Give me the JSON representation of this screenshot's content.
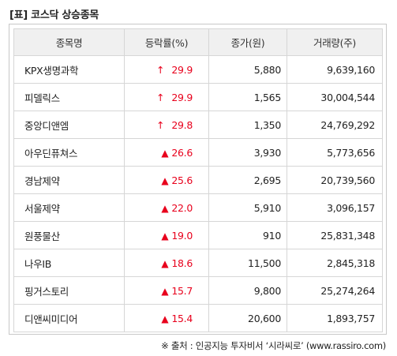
{
  "title": "[표] 코스닥 상승종목",
  "columns": [
    "종목명",
    "등락률(%)",
    "종가(원)",
    "거래량(주)"
  ],
  "rows": [
    {
      "name": "KPX생명과학",
      "mark": "↑",
      "mark_icon": "up-arrow-icon",
      "rate": "29.9",
      "price": "5,880",
      "volume": "9,639,160"
    },
    {
      "name": "피델릭스",
      "mark": "↑",
      "mark_icon": "up-arrow-icon",
      "rate": "29.9",
      "price": "1,565",
      "volume": "30,004,544"
    },
    {
      "name": "중앙디앤엠",
      "mark": "↑",
      "mark_icon": "up-arrow-icon",
      "rate": "29.8",
      "price": "1,350",
      "volume": "24,769,292"
    },
    {
      "name": "아우딘퓨쳐스",
      "mark": "▲",
      "mark_icon": "up-triangle-icon",
      "rate": "26.6",
      "price": "3,930",
      "volume": "5,773,656"
    },
    {
      "name": "경남제약",
      "mark": "▲",
      "mark_icon": "up-triangle-icon",
      "rate": "25.6",
      "price": "2,695",
      "volume": "20,739,560"
    },
    {
      "name": "서울제약",
      "mark": "▲",
      "mark_icon": "up-triangle-icon",
      "rate": "22.0",
      "price": "5,910",
      "volume": "3,096,157"
    },
    {
      "name": "원풍물산",
      "mark": "▲",
      "mark_icon": "up-triangle-icon",
      "rate": "19.0",
      "price": "910",
      "volume": "25,831,348"
    },
    {
      "name": "나우IB",
      "mark": "▲",
      "mark_icon": "up-triangle-icon",
      "rate": "18.6",
      "price": "11,500",
      "volume": "2,845,318"
    },
    {
      "name": "핑거스토리",
      "mark": "▲",
      "mark_icon": "up-triangle-icon",
      "rate": "15.7",
      "price": "9,800",
      "volume": "25,274,264"
    },
    {
      "name": "디앤씨미디어",
      "mark": "▲",
      "mark_icon": "up-triangle-icon",
      "rate": "15.4",
      "price": "20,600",
      "volume": "1,893,757"
    }
  ],
  "footer": "※ 출처 : 인공지능 투자비서 ‘시라씨로’ (www.rassiro.com)",
  "colors": {
    "up": "#e8001c",
    "header_bg": "#f0f0f0",
    "border": "#d6d6d6"
  }
}
